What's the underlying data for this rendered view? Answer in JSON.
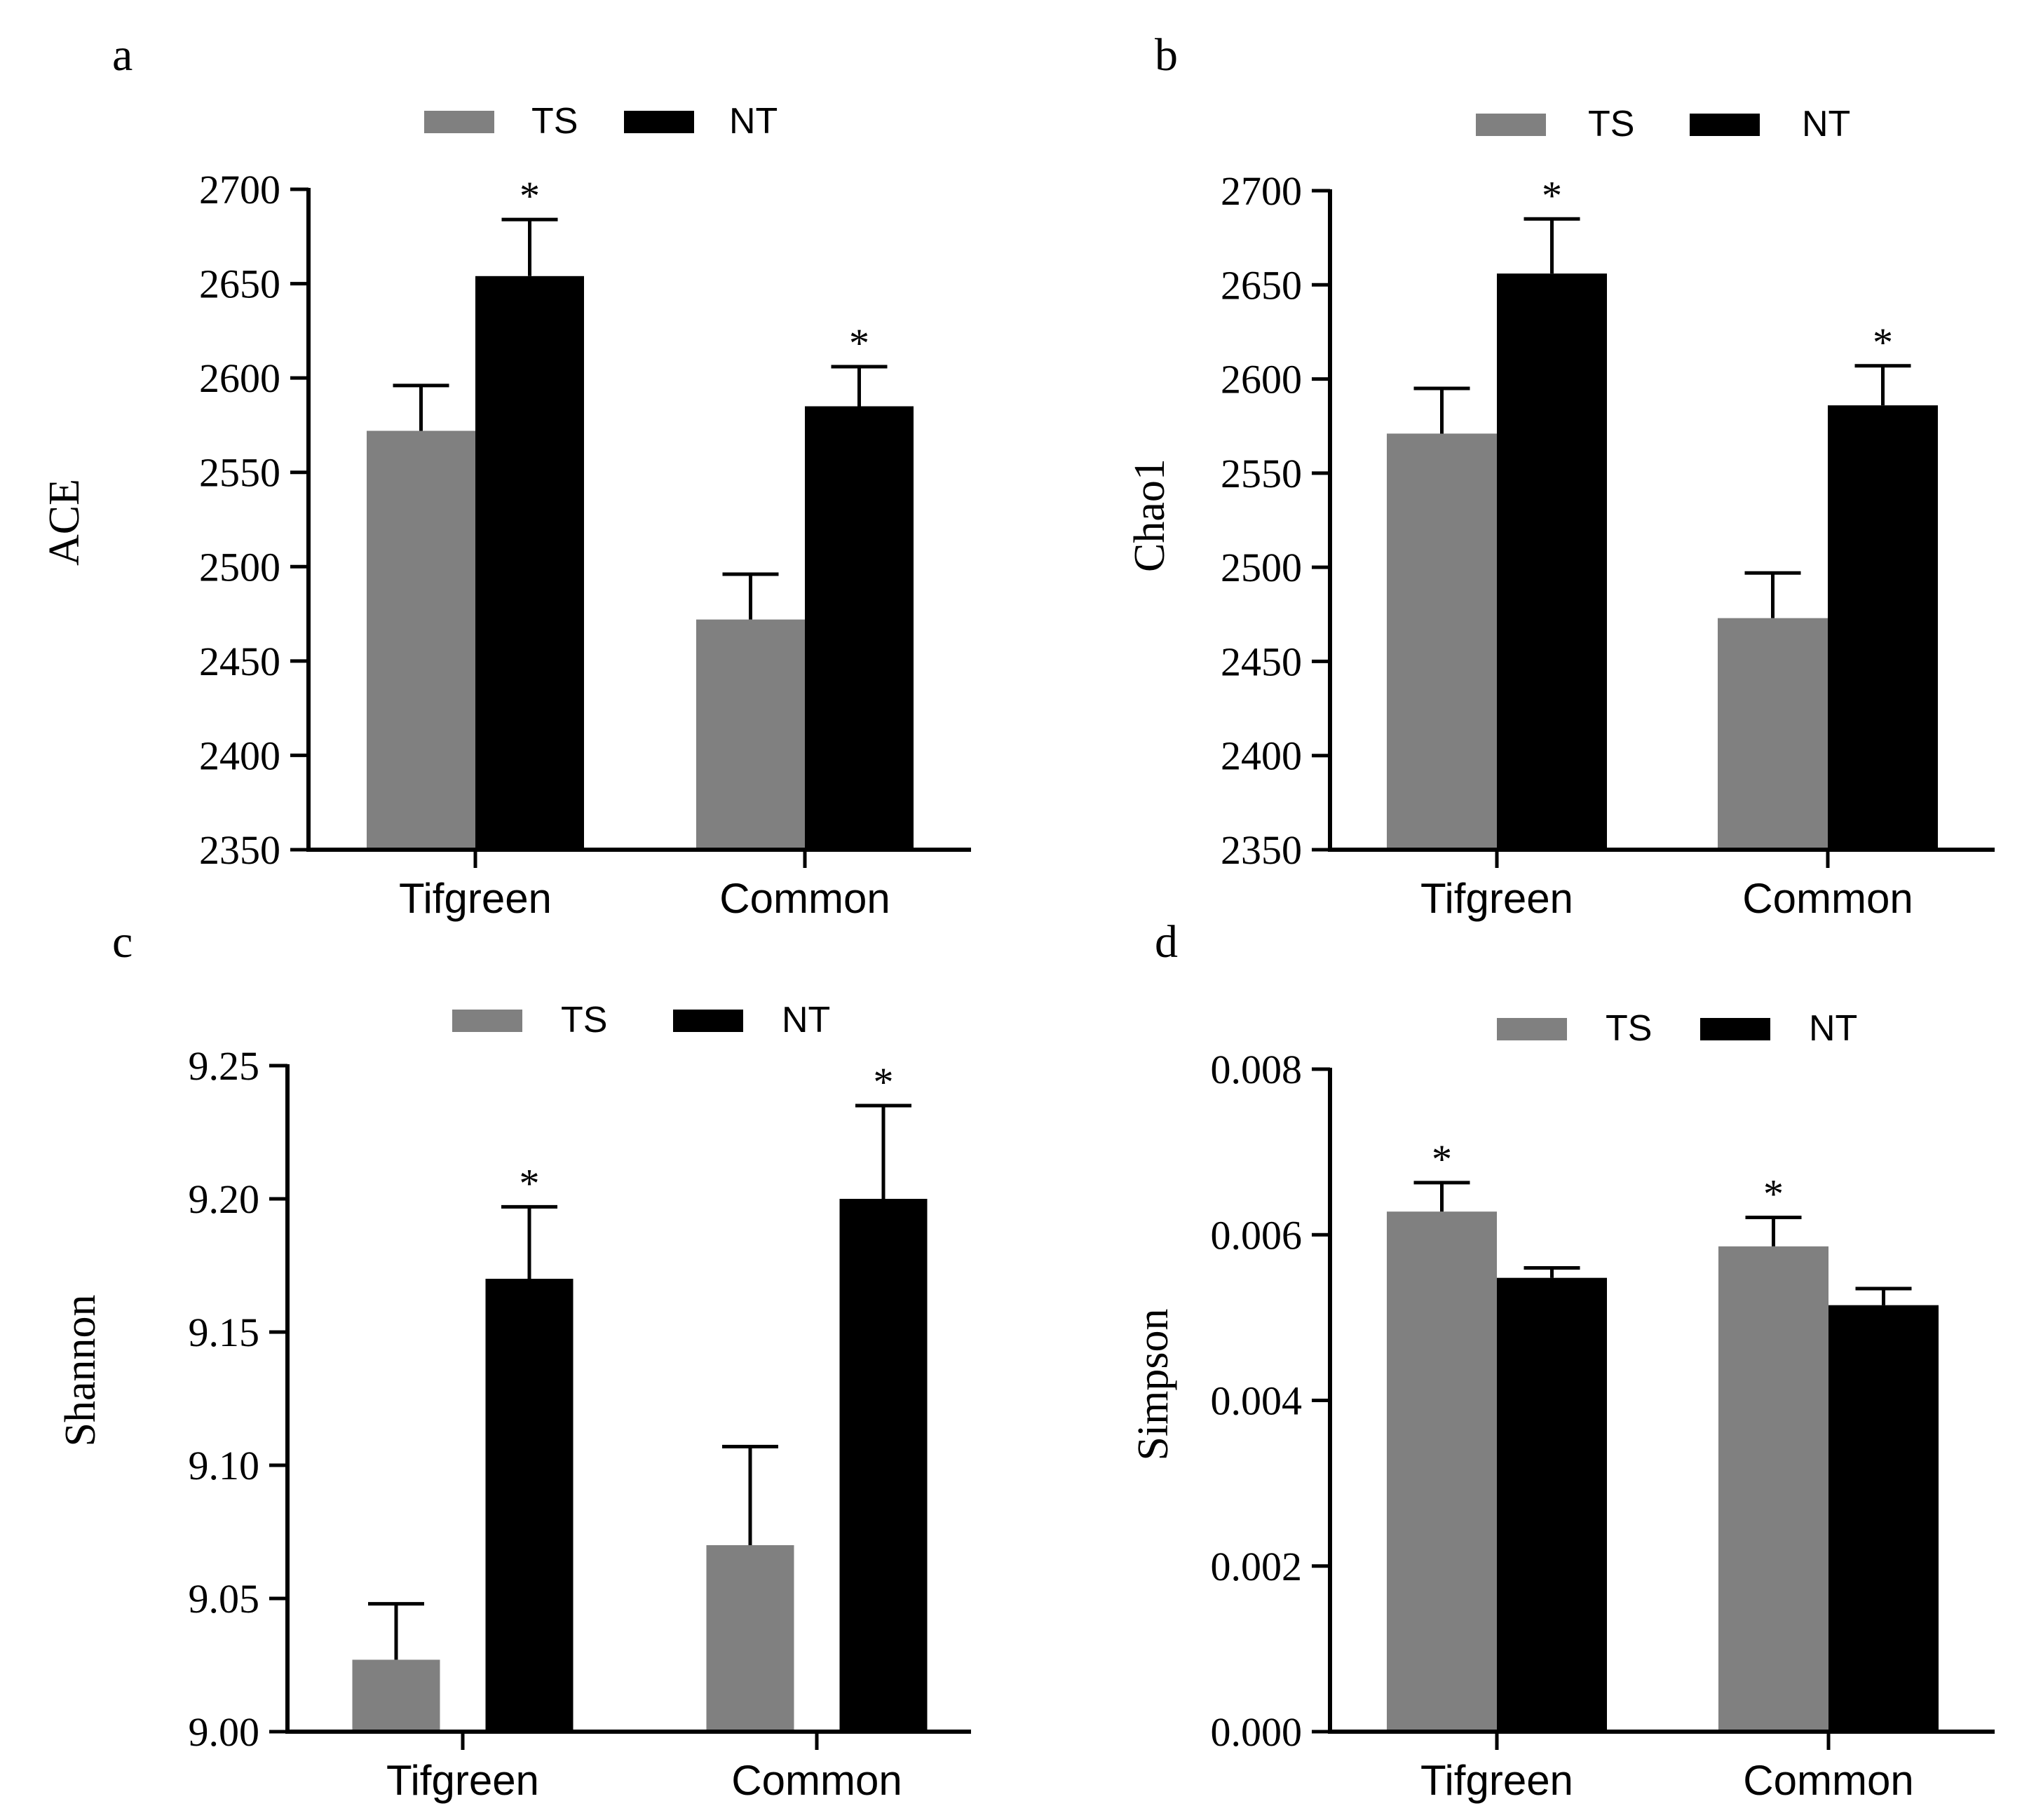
{
  "colors": {
    "ts": "#808080",
    "nt": "#000000",
    "axis": "#000000",
    "background": "#ffffff"
  },
  "legend": {
    "ts_label": "TS",
    "nt_label": "NT"
  },
  "chart_data": [
    {
      "panel_label": "a",
      "type": "bar",
      "ylabel": "ACE",
      "categories": [
        "Tifgreen",
        "Common"
      ],
      "ylim": [
        2350,
        2700
      ],
      "yticks": [
        "2350",
        "2400",
        "2450",
        "2500",
        "2550",
        "2600",
        "2650",
        "2700"
      ],
      "series": [
        {
          "name": "TS",
          "values": [
            2572,
            2472
          ],
          "errors": [
            24,
            24
          ],
          "sig": [
            "",
            ""
          ]
        },
        {
          "name": "NT",
          "values": [
            2654,
            2585
          ],
          "errors": [
            30,
            21
          ],
          "sig": [
            "*",
            "*"
          ]
        }
      ]
    },
    {
      "panel_label": "b",
      "type": "bar",
      "ylabel": "Chao1",
      "categories": [
        "Tifgreen",
        "Common"
      ],
      "ylim": [
        2350,
        2700
      ],
      "yticks": [
        "2350",
        "2400",
        "2450",
        "2500",
        "2550",
        "2600",
        "2650",
        "2700"
      ],
      "series": [
        {
          "name": "TS",
          "values": [
            2571,
            2473
          ],
          "errors": [
            24,
            24
          ],
          "sig": [
            "",
            ""
          ]
        },
        {
          "name": "NT",
          "values": [
            2656,
            2586
          ],
          "errors": [
            29,
            21
          ],
          "sig": [
            "*",
            "*"
          ]
        }
      ]
    },
    {
      "panel_label": "c",
      "type": "bar",
      "ylabel": "Shannon",
      "categories": [
        "Tifgreen",
        "Common"
      ],
      "ylim": [
        9.0,
        9.25
      ],
      "yticks": [
        "9.00",
        "9.05",
        "9.10",
        "9.15",
        "9.20",
        "9.25"
      ],
      "series": [
        {
          "name": "TS",
          "values": [
            9.027,
            9.07
          ],
          "errors": [
            0.021,
            0.037
          ],
          "sig": [
            "",
            ""
          ]
        },
        {
          "name": "NT",
          "values": [
            9.17,
            9.2
          ],
          "errors": [
            0.027,
            0.035
          ],
          "sig": [
            "*",
            "*"
          ]
        }
      ]
    },
    {
      "panel_label": "d",
      "type": "bar",
      "ylabel": "Simpson",
      "categories": [
        "Tifgreen",
        "Common"
      ],
      "ylim": [
        0.0,
        0.008
      ],
      "yticks": [
        "0.000",
        "0.002",
        "0.004",
        "0.006",
        "0.008"
      ],
      "series": [
        {
          "name": "TS",
          "values": [
            0.00628,
            0.00586
          ],
          "errors": [
            0.00035,
            0.00035
          ],
          "sig": [
            "*",
            "*"
          ]
        },
        {
          "name": "NT",
          "values": [
            0.00548,
            0.00515
          ],
          "errors": [
            0.00012,
            0.0002
          ],
          "sig": [
            "",
            ""
          ]
        }
      ]
    }
  ]
}
